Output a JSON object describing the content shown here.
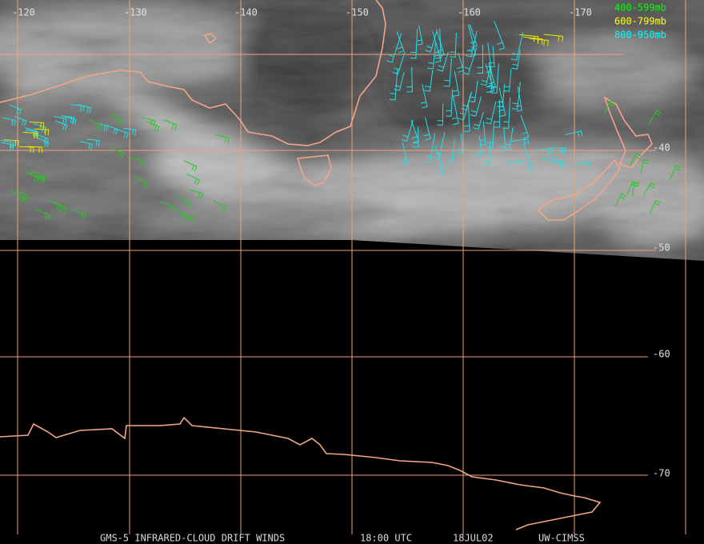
{
  "map": {
    "lon_labels": [
      "-120",
      "-130",
      "-140",
      "-150",
      "-160",
      "-170"
    ],
    "lat_labels": [
      "-40",
      "-50",
      "-60",
      "-70"
    ],
    "legend": [
      "400-599mb",
      "600-799mb",
      "800-950mb"
    ],
    "footer": [
      "GMS-5 INFRARED-CLOUD DRIFT WINDS",
      "18:00 UTC",
      "18JUL02",
      "UW-CIMSS"
    ]
  }
}
